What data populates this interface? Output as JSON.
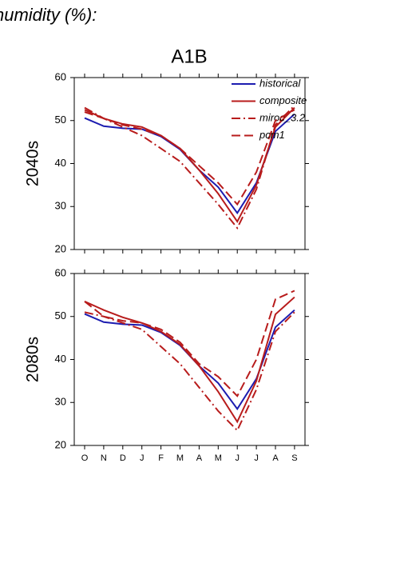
{
  "chart_data": [
    {
      "type": "line",
      "suptitle": "humidity (%):",
      "title": "A1B",
      "ylabel": "2040s",
      "ylim": [
        20,
        60
      ],
      "yticks": [
        20,
        30,
        40,
        50,
        60
      ],
      "series": [
        {
          "name": "historical",
          "color": "#1c1cb0",
          "dash": "solid",
          "values": [
            50.6,
            48.7,
            48.2,
            48.0,
            46.3,
            43.3,
            38.5,
            34.5,
            28.5,
            35.5,
            47.5,
            51.5
          ]
        },
        {
          "name": "composite",
          "color": "#b81c1c",
          "dash": "solid",
          "values": [
            52.5,
            50.5,
            49.2,
            48.5,
            46.5,
            43.5,
            38.5,
            33,
            26.5,
            35,
            48.5,
            53
          ]
        },
        {
          "name": "miroc_3.2",
          "color": "#b81c1c",
          "dash": "dashdot",
          "values": [
            53,
            50.5,
            48.5,
            46.5,
            43.5,
            40.5,
            35.5,
            30.5,
            25,
            34,
            49,
            53.5
          ]
        },
        {
          "name": "pcm1",
          "color": "#b81c1c",
          "dash": "dash",
          "values": [
            52,
            50.5,
            49,
            48,
            46.5,
            43.5,
            39.5,
            35.5,
            30.5,
            38,
            50,
            52.5
          ]
        }
      ]
    },
    {
      "type": "line",
      "ylabel": "2080s",
      "categories": [
        "O",
        "N",
        "D",
        "J",
        "F",
        "M",
        "A",
        "M",
        "J",
        "J",
        "A",
        "S"
      ],
      "ylim": [
        20,
        60
      ],
      "yticks": [
        20,
        30,
        40,
        50,
        60
      ],
      "series": [
        {
          "color": "#1c1cb0",
          "dash": "solid",
          "values": [
            50.6,
            48.7,
            48.2,
            48.0,
            46.3,
            43.3,
            38.5,
            34.5,
            28.5,
            35.5,
            47.5,
            51.5
          ]
        },
        {
          "color": "#b81c1c",
          "dash": "solid",
          "values": [
            53.5,
            51.5,
            49.8,
            48.5,
            46.5,
            43.5,
            38.5,
            32.5,
            25.5,
            35,
            50.5,
            54.5
          ]
        },
        {
          "color": "#b81c1c",
          "dash": "dashdot",
          "values": [
            51,
            50,
            48.5,
            47,
            43,
            39,
            33.5,
            28,
            23.5,
            33,
            46.5,
            51
          ]
        },
        {
          "color": "#b81c1c",
          "dash": "dash",
          "values": [
            53.5,
            50,
            49,
            48.5,
            47,
            44,
            39,
            36,
            31.5,
            40,
            54,
            56
          ]
        }
      ]
    }
  ]
}
